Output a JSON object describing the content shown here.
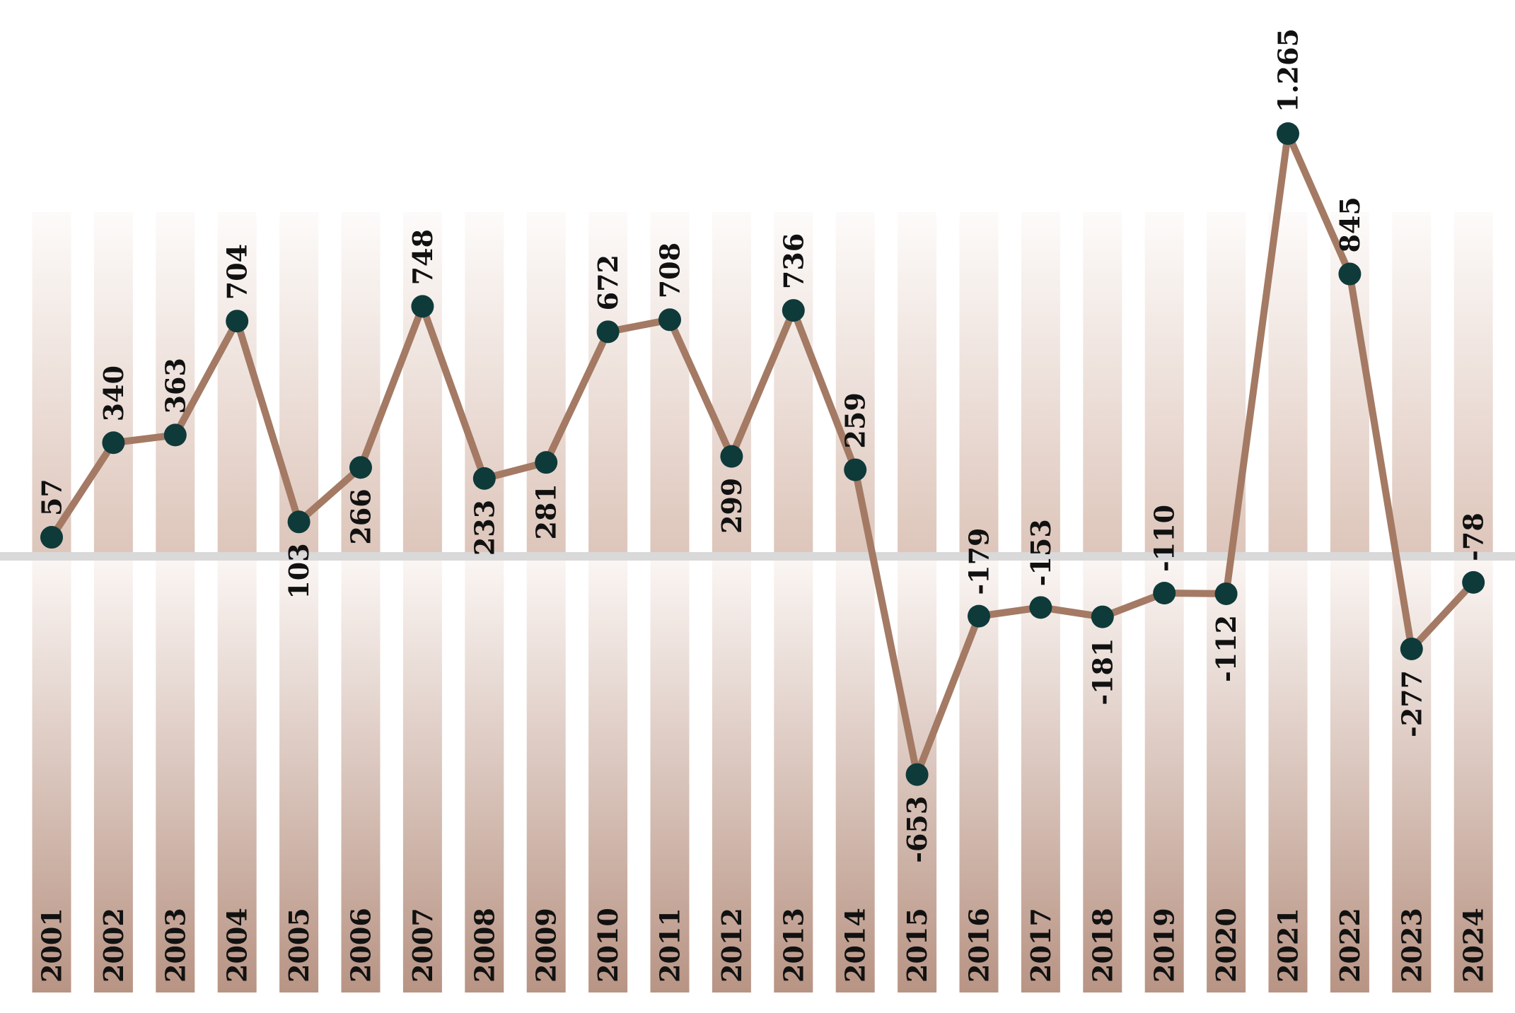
{
  "chart_data": {
    "type": "line",
    "title": "",
    "xlabel": "",
    "ylabel": "",
    "ylim": [
      -1000,
      1600
    ],
    "grid": false,
    "legend": "none",
    "zero_line": true,
    "colors": {
      "line": "#a47a64",
      "marker": "#0e3a3a",
      "bar_dark": "#b89484",
      "bar_light": "#fbf6f4",
      "zero_line": "#d9d9d9",
      "text": "#111111"
    },
    "categories": [
      "2001",
      "2002",
      "2003",
      "2004",
      "2005",
      "2006",
      "2007",
      "2008",
      "2009",
      "2010",
      "2011",
      "2012",
      "2013",
      "2014",
      "2015",
      "2016",
      "2017",
      "2018",
      "2019",
      "2020",
      "2021",
      "2022",
      "2023",
      "2024"
    ],
    "series": [
      {
        "values": [
          57,
          340,
          363,
          704,
          103,
          266,
          748,
          233,
          281,
          672,
          708,
          299,
          736,
          259,
          -653,
          -179,
          -153,
          -181,
          -110,
          -112,
          1265,
          845,
          -277,
          -78
        ],
        "labels": [
          "57",
          "340",
          "363",
          "704",
          "103",
          "266",
          "748",
          "233",
          "281",
          "672",
          "708",
          "299",
          "736",
          "259",
          "-653",
          "-179",
          "-153",
          "-181",
          "-110",
          "-112",
          "1.265",
          "845",
          "-277",
          "-78"
        ],
        "label_side": [
          "above",
          "above",
          "above",
          "above",
          "below",
          "below",
          "above",
          "below",
          "below",
          "above",
          "above",
          "below",
          "above",
          "above",
          "below",
          "above",
          "above",
          "below",
          "above",
          "below",
          "above",
          "above",
          "below",
          "above"
        ]
      }
    ]
  }
}
